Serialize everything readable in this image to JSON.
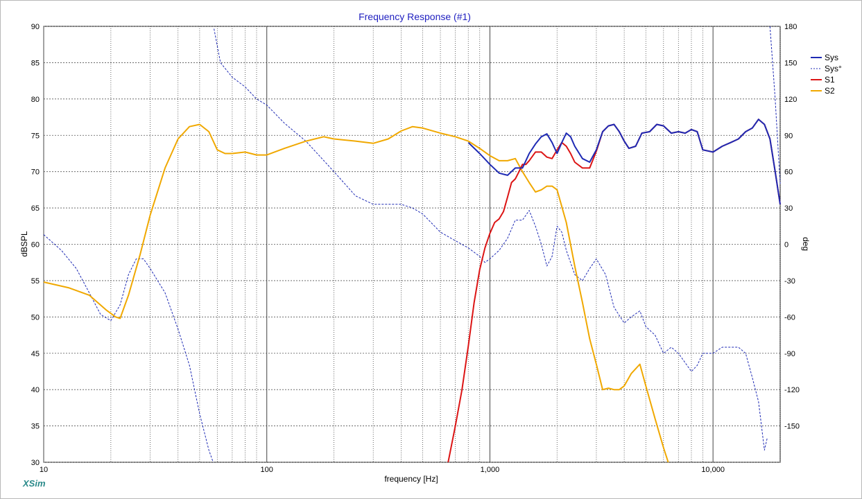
{
  "window": {
    "brand": "XSim"
  },
  "chart_data": {
    "type": "line",
    "title": "Frequency Response (#1)",
    "xlabel": "frequency [Hz]",
    "ylabel": "dBSPL",
    "y2label": "deg",
    "xscale": "log",
    "xlim": [
      10,
      20000
    ],
    "ylim": [
      30,
      90
    ],
    "y2lim": [
      -180,
      180
    ],
    "x_tick_labels": [
      {
        "value": 10,
        "label": "10"
      },
      {
        "value": 100,
        "label": "100"
      },
      {
        "value": 1000,
        "label": "1,000"
      },
      {
        "value": 10000,
        "label": "10,000"
      }
    ],
    "y_ticks": [
      90,
      85,
      80,
      75,
      70,
      65,
      60,
      55,
      50,
      45,
      40,
      35,
      30
    ],
    "y2_ticks": [
      180,
      150,
      120,
      90,
      60,
      30,
      0,
      -30,
      -60,
      -90,
      -120,
      -150
    ],
    "grid": true,
    "legend_position": "top-right",
    "colors": {
      "Sys": "#1e2ab4",
      "Sys°": "#1e2ab4",
      "S1": "#dc1414",
      "S2": "#f0a800"
    },
    "series": [
      {
        "name": "Sys",
        "axis": "left",
        "style": "solid",
        "x": [
          800,
          900,
          1000,
          1100,
          1200,
          1300,
          1400,
          1500,
          1600,
          1700,
          1800,
          1900,
          2000,
          2100,
          2200,
          2300,
          2400,
          2600,
          2800,
          3000,
          3200,
          3400,
          3600,
          3800,
          4000,
          4200,
          4500,
          4800,
          5200,
          5600,
          6000,
          6500,
          7000,
          7500,
          8000,
          8500,
          9000,
          10000,
          11000,
          12000,
          13000,
          14000,
          15000,
          16000,
          17000,
          18000,
          19000,
          20000
        ],
        "y": [
          74,
          72.5,
          71,
          69.8,
          69.5,
          70.5,
          70.5,
          72.5,
          73.8,
          74.8,
          75.2,
          74,
          72.5,
          74,
          75.3,
          74.8,
          73.5,
          71.8,
          71.3,
          73,
          75.5,
          76.3,
          76.5,
          75.5,
          74.2,
          73.2,
          73.5,
          75.3,
          75.5,
          76.5,
          76.3,
          75.3,
          75.5,
          75.3,
          75.8,
          75.5,
          73,
          72.7,
          73.5,
          74,
          74.5,
          75.5,
          76,
          77.2,
          76.5,
          74.5,
          70,
          65.5
        ]
      },
      {
        "name": "Sys°",
        "axis": "right",
        "style": "dashed",
        "x": [
          10,
          12,
          14,
          16,
          18,
          20,
          22,
          24,
          26,
          28,
          30,
          35,
          40,
          45,
          50,
          55,
          57.5,
          58,
          62,
          70,
          80,
          90,
          100,
          120,
          150,
          200,
          250,
          300,
          350,
          400,
          450,
          500,
          600,
          700,
          800,
          900,
          950,
          1000,
          1100,
          1200,
          1300,
          1400,
          1500,
          1600,
          1700,
          1800,
          1900,
          2000,
          2100,
          2200,
          2400,
          2600,
          2800,
          3000,
          3300,
          3600,
          4000,
          4300,
          4700,
          5000,
          5500,
          6000,
          6500,
          7000,
          8000,
          8500,
          9000,
          10000,
          11000,
          12000,
          13000,
          14000,
          15000,
          16000,
          17000,
          17500,
          18000,
          19000,
          20000
        ],
        "y": [
          8,
          -5,
          -20,
          -40,
          -58,
          -63,
          -50,
          -25,
          -12,
          -12,
          -20,
          -40,
          -70,
          -100,
          -140,
          -170,
          -180,
          178,
          150,
          138,
          130,
          120,
          115,
          100,
          85,
          60,
          40,
          33,
          33,
          33,
          30,
          25,
          10,
          3,
          -3,
          -10,
          -15,
          -12,
          -5,
          5,
          20,
          20,
          28,
          15,
          0,
          -18,
          -10,
          15,
          10,
          -5,
          -25,
          -30,
          -20,
          -12,
          -25,
          -52,
          -65,
          -60,
          -55,
          -68,
          -75,
          -90,
          -85,
          -90,
          -105,
          -100,
          -90,
          -90,
          -85,
          -85,
          -85,
          -90,
          -110,
          -130,
          -170,
          -160,
          180,
          120,
          50
        ]
      },
      {
        "name": "S1",
        "axis": "left",
        "style": "solid",
        "x": [
          650,
          700,
          750,
          800,
          850,
          900,
          950,
          1000,
          1050,
          1100,
          1150,
          1200,
          1250,
          1300,
          1350,
          1400,
          1450,
          1500,
          1600,
          1700,
          1800,
          1900,
          2000,
          2100,
          2200,
          2300,
          2400,
          2600,
          2800,
          3000,
          3200,
          3400,
          3600,
          3800,
          4000,
          4200,
          4500,
          4800,
          5200,
          5600,
          6000,
          6500,
          7000,
          7500,
          8000,
          8500,
          9000,
          10000,
          11000,
          12000,
          13000,
          14000,
          15000,
          16000,
          17000,
          18000,
          19000,
          20000
        ],
        "y": [
          30,
          35,
          40,
          46,
          52,
          56.5,
          59.5,
          61.5,
          63,
          63.5,
          64.5,
          66.5,
          68.5,
          69,
          70,
          71,
          71,
          71.5,
          72.7,
          72.7,
          72,
          71.8,
          73,
          74,
          73.5,
          72.5,
          71.3,
          70.5,
          70.5,
          72.8,
          75.5,
          76.3,
          76.5,
          75.5,
          74.2,
          73.2,
          73.5,
          75.3,
          75.5,
          76.5,
          76.3,
          75.3,
          75.5,
          75.3,
          75.8,
          75.5,
          73,
          72.7,
          73.5,
          74,
          74.5,
          75.5,
          76,
          77.2,
          76.5,
          74.5,
          70,
          65.5
        ]
      },
      {
        "name": "S2",
        "axis": "left",
        "style": "solid",
        "x": [
          10,
          13,
          16,
          19,
          21,
          22,
          24,
          27,
          30,
          35,
          40,
          45,
          50,
          55,
          60,
          65,
          70,
          80,
          90,
          100,
          120,
          150,
          180,
          200,
          250,
          300,
          350,
          400,
          450,
          500,
          600,
          700,
          800,
          900,
          1000,
          1100,
          1200,
          1300,
          1400,
          1500,
          1600,
          1700,
          1800,
          1900,
          2000,
          2200,
          2400,
          2600,
          2800,
          3000,
          3200,
          3400,
          3600,
          3800,
          4000,
          4300,
          4700,
          5000,
          5500,
          6000,
          6300
        ],
        "y": [
          54.8,
          54,
          53,
          51,
          50,
          49.8,
          53,
          58.5,
          64,
          70.5,
          74.5,
          76.2,
          76.5,
          75.5,
          73,
          72.5,
          72.5,
          72.7,
          72.3,
          72.3,
          73.2,
          74.2,
          74.8,
          74.5,
          74.2,
          73.9,
          74.5,
          75.6,
          76.2,
          76,
          75.3,
          74.8,
          74.2,
          73.2,
          72.2,
          71.5,
          71.5,
          71.8,
          70,
          68.5,
          67.2,
          67.5,
          68,
          68,
          67.5,
          63,
          57,
          52,
          47,
          43.5,
          40,
          40.2,
          40,
          40,
          40.5,
          42.2,
          43.5,
          40.5,
          36,
          32,
          30
        ]
      }
    ]
  }
}
